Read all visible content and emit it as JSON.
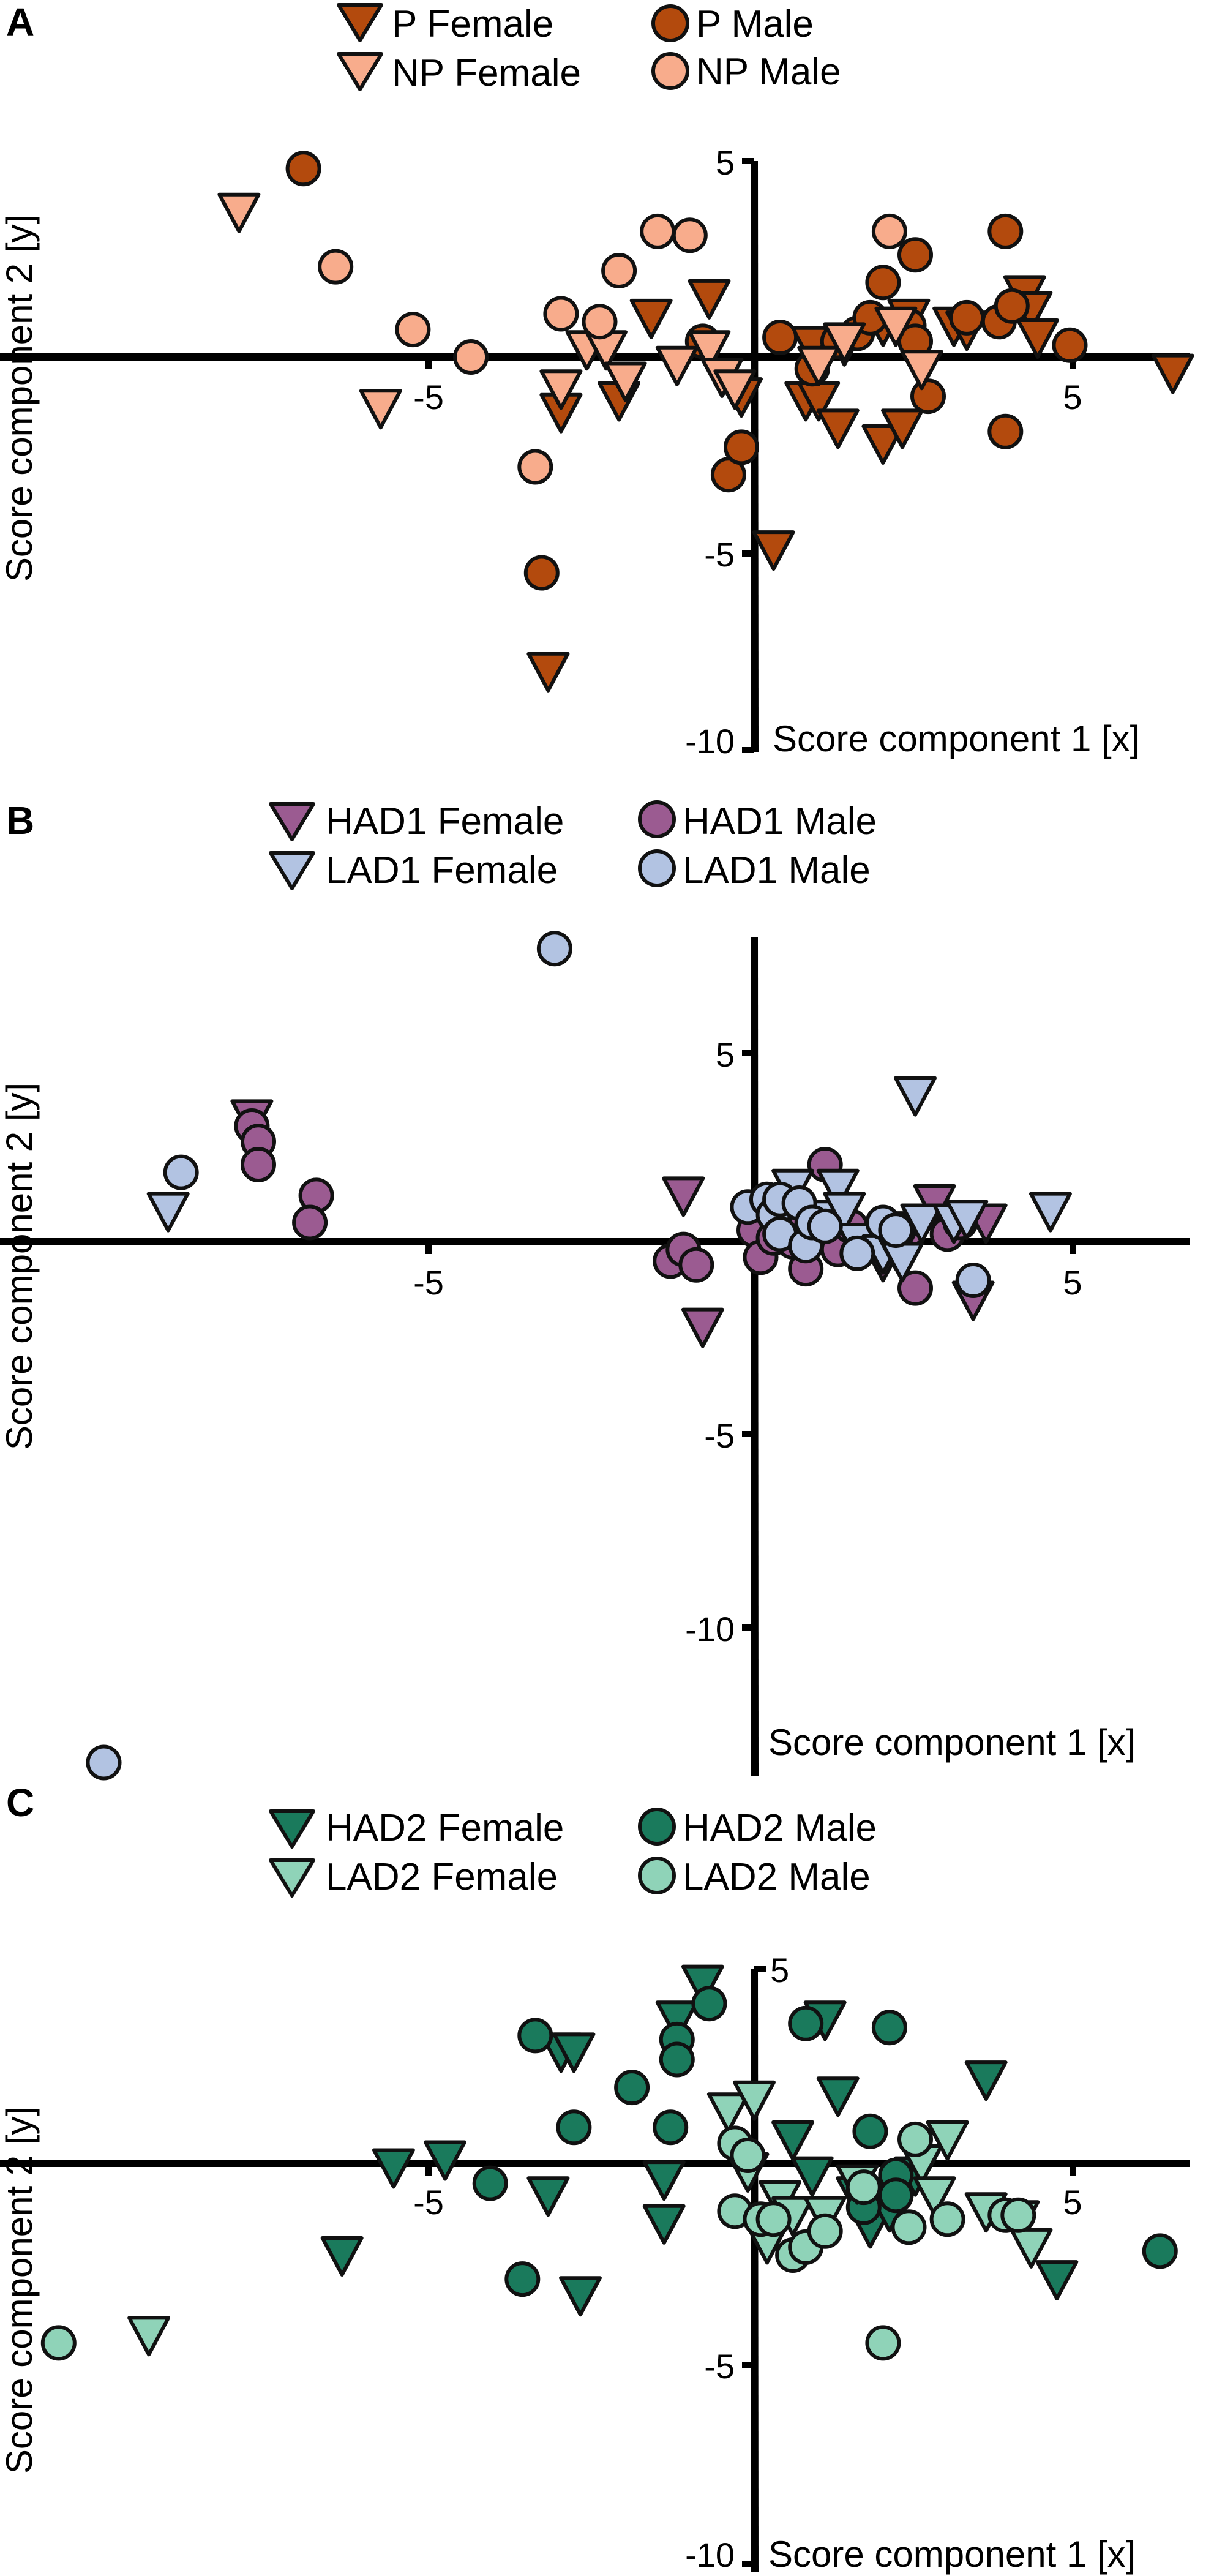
{
  "figure": {
    "panels": [
      "A",
      "B",
      "C"
    ]
  },
  "chart_data": [
    {
      "type": "scatter",
      "panel_label": "A",
      "xlabel": "Score component 1 [x]",
      "ylabel": "Score component 2 [y]",
      "xlim": [
        -11.5,
        6.9
      ],
      "ylim": [
        -10,
        5
      ],
      "x_ticks": [
        -5,
        5
      ],
      "y_ticks": [
        5,
        -5,
        -10
      ],
      "legend": [
        {
          "name": "P Female",
          "marker": "triangle-down",
          "color": "#b34a0d"
        },
        {
          "name": "P Male",
          "marker": "circle",
          "color": "#b34a0d"
        },
        {
          "name": "NP Female",
          "marker": "triangle-down",
          "color": "#f8ac8c"
        },
        {
          "name": "NP Male",
          "marker": "circle",
          "color": "#f8ac8c"
        }
      ],
      "series": [
        {
          "name": "P Female",
          "marker": "triangle-down",
          "color": "#b34a0d",
          "points": [
            [
              -3.0,
              -1.4
            ],
            [
              -3.2,
              -8.0
            ],
            [
              -2.1,
              -1.1
            ],
            [
              -1.6,
              1.0
            ],
            [
              -0.7,
              1.5
            ],
            [
              -0.2,
              -1.0
            ],
            [
              0.3,
              -4.9
            ],
            [
              0.8,
              -1.1
            ],
            [
              0.9,
              0.3
            ],
            [
              1.0,
              -1.1
            ],
            [
              1.3,
              -1.8
            ],
            [
              1.4,
              0.3
            ],
            [
              2.0,
              0.8
            ],
            [
              2.0,
              -2.2
            ],
            [
              2.3,
              -1.8
            ],
            [
              2.4,
              1.0
            ],
            [
              3.1,
              0.8
            ],
            [
              3.3,
              0.7
            ],
            [
              4.2,
              1.6
            ],
            [
              4.3,
              1.2
            ],
            [
              4.4,
              0.5
            ],
            [
              6.5,
              -0.4
            ]
          ]
        },
        {
          "name": "P Male",
          "marker": "circle",
          "color": "#b34a0d",
          "points": [
            [
              -7.0,
              4.8
            ],
            [
              -3.3,
              -5.5
            ],
            [
              -0.8,
              0.4
            ],
            [
              -0.4,
              -3.0
            ],
            [
              -0.2,
              -2.3
            ],
            [
              0.4,
              0.5
            ],
            [
              0.9,
              -0.3
            ],
            [
              1.3,
              0.4
            ],
            [
              1.6,
              0.6
            ],
            [
              1.8,
              1.0
            ],
            [
              2.0,
              1.9
            ],
            [
              2.4,
              0.8
            ],
            [
              2.5,
              0.4
            ],
            [
              2.5,
              2.6
            ],
            [
              2.7,
              -1.0
            ],
            [
              3.3,
              1.0
            ],
            [
              3.8,
              0.9
            ],
            [
              3.9,
              3.2
            ],
            [
              4.0,
              1.3
            ],
            [
              3.9,
              -1.9
            ],
            [
              4.9,
              0.3
            ]
          ]
        },
        {
          "name": "NP Female",
          "marker": "triangle-down",
          "color": "#f8ac8c",
          "points": [
            [
              -8.0,
              3.7
            ],
            [
              -5.8,
              -1.3
            ],
            [
              -3.0,
              -0.8
            ],
            [
              -2.6,
              0.2
            ],
            [
              -2.3,
              0.2
            ],
            [
              -2.0,
              -0.6
            ],
            [
              -1.2,
              -0.2
            ],
            [
              -0.7,
              0.2
            ],
            [
              -0.5,
              -0.5
            ],
            [
              -0.3,
              -0.8
            ],
            [
              1.0,
              -0.2
            ],
            [
              1.4,
              0.4
            ],
            [
              2.2,
              0.8
            ],
            [
              2.6,
              -0.3
            ]
          ]
        },
        {
          "name": "NP Male",
          "marker": "circle",
          "color": "#f8ac8c",
          "points": [
            [
              -6.5,
              2.3
            ],
            [
              -5.3,
              0.7
            ],
            [
              -4.4,
              0.0
            ],
            [
              -3.4,
              -2.8
            ],
            [
              -3.0,
              1.1
            ],
            [
              -2.4,
              0.9
            ],
            [
              -2.1,
              2.2
            ],
            [
              -1.5,
              3.2
            ],
            [
              -1.0,
              3.1
            ],
            [
              2.1,
              3.2
            ]
          ]
        }
      ]
    },
    {
      "type": "scatter",
      "panel_label": "B",
      "xlabel": "Score component 1 [x]",
      "ylabel": "Score component 2 [y]",
      "xlim": [
        -11.5,
        6.9
      ],
      "ylim": [
        -14,
        8
      ],
      "x_ticks": [
        -5,
        5
      ],
      "y_ticks": [
        5,
        -5,
        -10
      ],
      "legend": [
        {
          "name": "HAD1 Female",
          "marker": "triangle-down",
          "color": "#9b5b91"
        },
        {
          "name": "HAD1 Male",
          "marker": "circle",
          "color": "#9b5b91"
        },
        {
          "name": "LAD1 Female",
          "marker": "triangle-down",
          "color": "#b2c3e2"
        },
        {
          "name": "LAD1 Male",
          "marker": "circle",
          "color": "#b2c3e2"
        }
      ],
      "series": [
        {
          "name": "HAD1 Female",
          "marker": "triangle-down",
          "color": "#9b5b91",
          "points": [
            [
              -7.8,
              3.2
            ],
            [
              -1.1,
              1.2
            ],
            [
              -0.8,
              -2.2
            ],
            [
              0.5,
              0.3
            ],
            [
              1.1,
              0.2
            ],
            [
              1.6,
              0.0
            ],
            [
              1.9,
              0.1
            ],
            [
              2.0,
              -0.5
            ],
            [
              2.3,
              0.2
            ],
            [
              2.5,
              0.3
            ],
            [
              2.8,
              1.0
            ],
            [
              3.4,
              -1.5
            ],
            [
              3.6,
              0.5
            ]
          ]
        },
        {
          "name": "HAD1 Male",
          "marker": "circle",
          "color": "#9b5b91",
          "points": [
            [
              -7.8,
              3.0
            ],
            [
              -7.7,
              2.6
            ],
            [
              -7.7,
              2.0
            ],
            [
              -6.8,
              1.2
            ],
            [
              -6.9,
              0.5
            ],
            [
              -1.3,
              -0.5
            ],
            [
              -1.1,
              -0.2
            ],
            [
              -0.9,
              -0.6
            ],
            [
              0.0,
              0.3
            ],
            [
              0.1,
              -0.4
            ],
            [
              0.3,
              0.1
            ],
            [
              0.6,
              0.0
            ],
            [
              0.8,
              0.5
            ],
            [
              0.8,
              -0.7
            ],
            [
              1.1,
              2.0
            ],
            [
              1.3,
              -0.2
            ],
            [
              1.5,
              0.4
            ],
            [
              2.0,
              -0.1
            ],
            [
              2.4,
              0.3
            ],
            [
              2.5,
              -1.2
            ],
            [
              3.0,
              0.2
            ],
            [
              3.2,
              0.5
            ]
          ]
        },
        {
          "name": "LAD1 Female",
          "marker": "triangle-down",
          "color": "#b2c3e2",
          "points": [
            [
              -9.1,
              0.8
            ],
            [
              0.6,
              1.4
            ],
            [
              1.1,
              0.6
            ],
            [
              1.3,
              1.4
            ],
            [
              1.4,
              0.8
            ],
            [
              1.6,
              0.0
            ],
            [
              2.0,
              -0.3
            ],
            [
              2.2,
              -0.2
            ],
            [
              2.6,
              0.5
            ],
            [
              2.3,
              -0.5
            ],
            [
              2.5,
              3.8
            ],
            [
              3.1,
              0.5
            ],
            [
              3.3,
              0.6
            ],
            [
              4.6,
              0.8
            ]
          ]
        },
        {
          "name": "LAD1 Male",
          "marker": "circle",
          "color": "#b2c3e2",
          "points": [
            [
              -3.1,
              7.6
            ],
            [
              -10.1,
              -13.5
            ],
            [
              -8.9,
              1.8
            ],
            [
              -0.1,
              0.9
            ],
            [
              0.2,
              1.1
            ],
            [
              0.3,
              0.7
            ],
            [
              0.4,
              0.2
            ],
            [
              0.4,
              1.1
            ],
            [
              0.7,
              1.0
            ],
            [
              0.8,
              -0.1
            ],
            [
              0.9,
              0.5
            ],
            [
              1.1,
              0.4
            ],
            [
              1.6,
              -0.3
            ],
            [
              2.0,
              0.5
            ],
            [
              2.2,
              0.3
            ],
            [
              3.4,
              -1.0
            ]
          ]
        }
      ]
    },
    {
      "type": "scatter",
      "panel_label": "C",
      "xlabel": "Score component 1 [x]",
      "ylabel": "Score component 2 [y]",
      "xlim": [
        -11.5,
        6.9
      ],
      "ylim": [
        -10,
        5
      ],
      "x_ticks": [
        -5,
        5
      ],
      "y_ticks": [
        5,
        -5,
        -10
      ],
      "legend": [
        {
          "name": "HAD2 Female",
          "marker": "triangle-down",
          "color": "#1a7a5c"
        },
        {
          "name": "HAD2 Male",
          "marker": "circle",
          "color": "#1a7a5c"
        },
        {
          "name": "LAD2 Female",
          "marker": "triangle-down",
          "color": "#8fd3b8"
        },
        {
          "name": "LAD2 Male",
          "marker": "circle",
          "color": "#8fd3b8"
        }
      ],
      "series": [
        {
          "name": "HAD2 Female",
          "marker": "triangle-down",
          "color": "#1a7a5c",
          "points": [
            [
              -6.4,
              -2.3
            ],
            [
              -5.6,
              -0.1
            ],
            [
              -4.8,
              0.1
            ],
            [
              -3.0,
              2.8
            ],
            [
              -3.2,
              -0.8
            ],
            [
              -2.8,
              2.8
            ],
            [
              -2.7,
              -3.3
            ],
            [
              -1.4,
              -0.4
            ],
            [
              -1.4,
              -1.5
            ],
            [
              -1.2,
              3.6
            ],
            [
              -0.8,
              4.5
            ],
            [
              0.6,
              0.6
            ],
            [
              0.9,
              -0.3
            ],
            [
              1.1,
              3.6
            ],
            [
              1.3,
              1.7
            ],
            [
              1.6,
              -0.8
            ],
            [
              1.8,
              -1.6
            ],
            [
              2.1,
              -1.2
            ],
            [
              2.5,
              -0.3
            ],
            [
              3.6,
              2.1
            ],
            [
              4.7,
              -2.9
            ]
          ]
        },
        {
          "name": "HAD2 Male",
          "marker": "circle",
          "color": "#1a7a5c",
          "points": [
            [
              -3.6,
              -2.9
            ],
            [
              -3.4,
              3.2
            ],
            [
              -2.8,
              0.9
            ],
            [
              -4.1,
              -0.5
            ],
            [
              -1.9,
              1.9
            ],
            [
              -1.3,
              0.9
            ],
            [
              -1.2,
              3.1
            ],
            [
              -1.2,
              2.6
            ],
            [
              -0.7,
              4.0
            ],
            [
              0.8,
              3.5
            ],
            [
              1.7,
              -1.1
            ],
            [
              1.8,
              0.8
            ],
            [
              2.1,
              3.4
            ],
            [
              2.2,
              -0.3
            ],
            [
              2.2,
              -0.8
            ],
            [
              6.3,
              -2.2
            ]
          ]
        },
        {
          "name": "LAD2 Female",
          "marker": "triangle-down",
          "color": "#8fd3b8",
          "points": [
            [
              -9.4,
              -4.3
            ],
            [
              -0.1,
              -0.2
            ],
            [
              -0.4,
              1.3
            ],
            [
              0.0,
              1.6
            ],
            [
              0.2,
              -2.0
            ],
            [
              0.4,
              -0.9
            ],
            [
              0.6,
              -1.3
            ],
            [
              1.1,
              -1.3
            ],
            [
              1.6,
              -0.5
            ],
            [
              2.6,
              0.0
            ],
            [
              2.8,
              -0.8
            ],
            [
              3.0,
              0.6
            ],
            [
              3.6,
              -1.2
            ],
            [
              4.1,
              -1.4
            ],
            [
              4.3,
              -2.1
            ]
          ]
        },
        {
          "name": "LAD2 Male",
          "marker": "circle",
          "color": "#8fd3b8",
          "points": [
            [
              -10.8,
              -4.5
            ],
            [
              -0.3,
              0.5
            ],
            [
              -0.1,
              0.2
            ],
            [
              -0.3,
              -1.2
            ],
            [
              0.1,
              -1.4
            ],
            [
              0.3,
              -1.4
            ],
            [
              0.6,
              -2.3
            ],
            [
              0.8,
              -2.1
            ],
            [
              1.1,
              -1.7
            ],
            [
              1.7,
              -0.6
            ],
            [
              2.0,
              -4.5
            ],
            [
              2.4,
              -1.6
            ],
            [
              2.5,
              0.6
            ],
            [
              3.0,
              -1.4
            ],
            [
              3.9,
              -1.3
            ],
            [
              4.1,
              -1.3
            ]
          ]
        }
      ]
    }
  ]
}
